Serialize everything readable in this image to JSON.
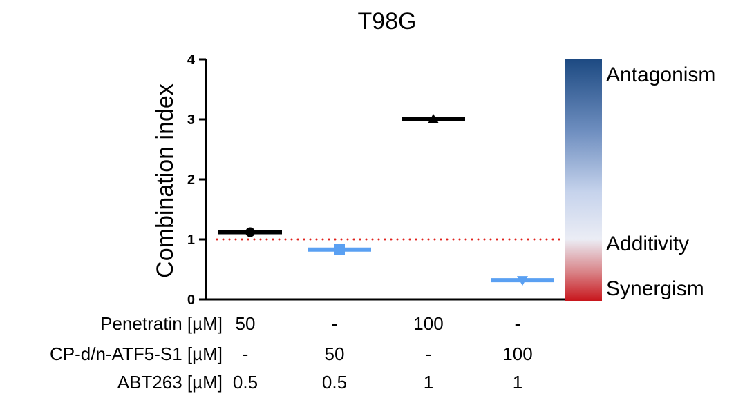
{
  "chart_data": {
    "type": "scatter",
    "title": "T98G",
    "xlabel": "",
    "ylabel": "Combination index",
    "ylim": [
      0,
      4
    ],
    "yticks": [
      0,
      1,
      2,
      3,
      4
    ],
    "reference_line": {
      "y": 1,
      "color": "#e0201b",
      "style": "dotted"
    },
    "categories": [
      "1",
      "2",
      "3",
      "4"
    ],
    "points": [
      {
        "category": "1",
        "value": 1.12,
        "marker": "circle",
        "color": "#000000"
      },
      {
        "category": "2",
        "value": 0.83,
        "marker": "square",
        "color": "#5aa0f2"
      },
      {
        "category": "3",
        "value": 3.0,
        "marker": "triangle-up",
        "color": "#000000"
      },
      {
        "category": "4",
        "value": 0.32,
        "marker": "triangle-down",
        "color": "#5aa0f2"
      }
    ],
    "condition_table": {
      "rows": [
        {
          "label": "Penetratin [µM]",
          "values": [
            "50",
            "-",
            "100",
            "-"
          ]
        },
        {
          "label": "CP-d/n-ATF5-S1 [µM]",
          "values": [
            "-",
            "50",
            "-",
            "100"
          ]
        },
        {
          "label": "ABT263 [µM]",
          "values": [
            "0.5",
            "0.5",
            "1",
            "1"
          ]
        }
      ]
    },
    "colorbar": {
      "labels": [
        {
          "text": "Antagonism",
          "value": 4
        },
        {
          "text": "Additivity",
          "value": 1
        },
        {
          "text": "Synergism",
          "value": 0.3
        }
      ],
      "colors": {
        "top": "#1d4a82",
        "middle": "#ebedf5",
        "bottom": "#c8161c"
      }
    }
  }
}
